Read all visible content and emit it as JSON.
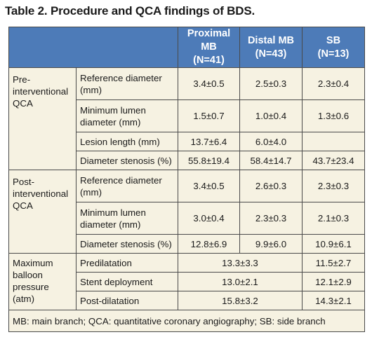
{
  "title": "Table 2. Procedure and QCA findings of BDS.",
  "columns": [
    {
      "name": "Proximal MB",
      "n": "(N=41)"
    },
    {
      "name": "Distal MB",
      "n": "(N=43)"
    },
    {
      "name": "SB",
      "n": "(N=13)"
    }
  ],
  "pre": {
    "group": "Pre-\ninterventional\nQCA",
    "rows": [
      {
        "label": "Reference diameter\n(mm)",
        "v1": "3.4±0.5",
        "v2": "2.5±0.3",
        "v3": "2.3±0.4"
      },
      {
        "label": "Minimum lumen\ndiameter (mm)",
        "v1": "1.5±0.7",
        "v2": "1.0±0.4",
        "v3": "1.3±0.6"
      },
      {
        "label": "Lesion length (mm)",
        "v1": "13.7±6.4",
        "v2": "6.0±4.0",
        "v3": ""
      },
      {
        "label": "Diameter stenosis (%)",
        "v1": "55.8±19.4",
        "v2": "58.4±14.7",
        "v3": "43.7±23.4"
      }
    ]
  },
  "post": {
    "group": "Post-\ninterventional\nQCA",
    "rows": [
      {
        "label": "Reference diameter\n(mm)",
        "v1": "3.4±0.5",
        "v2": "2.6±0.3",
        "v3": "2.3±0.3"
      },
      {
        "label": "Minimum lumen\ndiameter (mm)",
        "v1": "3.0±0.4",
        "v2": "2.3±0.3",
        "v3": "2.1±0.3"
      },
      {
        "label": "Diameter stenosis (%)",
        "v1": "12.8±6.9",
        "v2": "9.9±6.0",
        "v3": "10.9±6.1"
      }
    ]
  },
  "pressure": {
    "group": "Maximum\nballoon\npressure (atm)",
    "rows": [
      {
        "label": "Predilatation",
        "mb": "13.3±3.3",
        "sb": "11.5±2.7"
      },
      {
        "label": "Stent deployment",
        "mb": "13.0±2.1",
        "sb": "12.1±2.9"
      },
      {
        "label": "Post-dilatation",
        "mb": "15.8±3.2",
        "sb": "14.3±2.1"
      }
    ]
  },
  "footnote": "MB: main branch; QCA: quantitative coronary angiography; SB: side branch"
}
